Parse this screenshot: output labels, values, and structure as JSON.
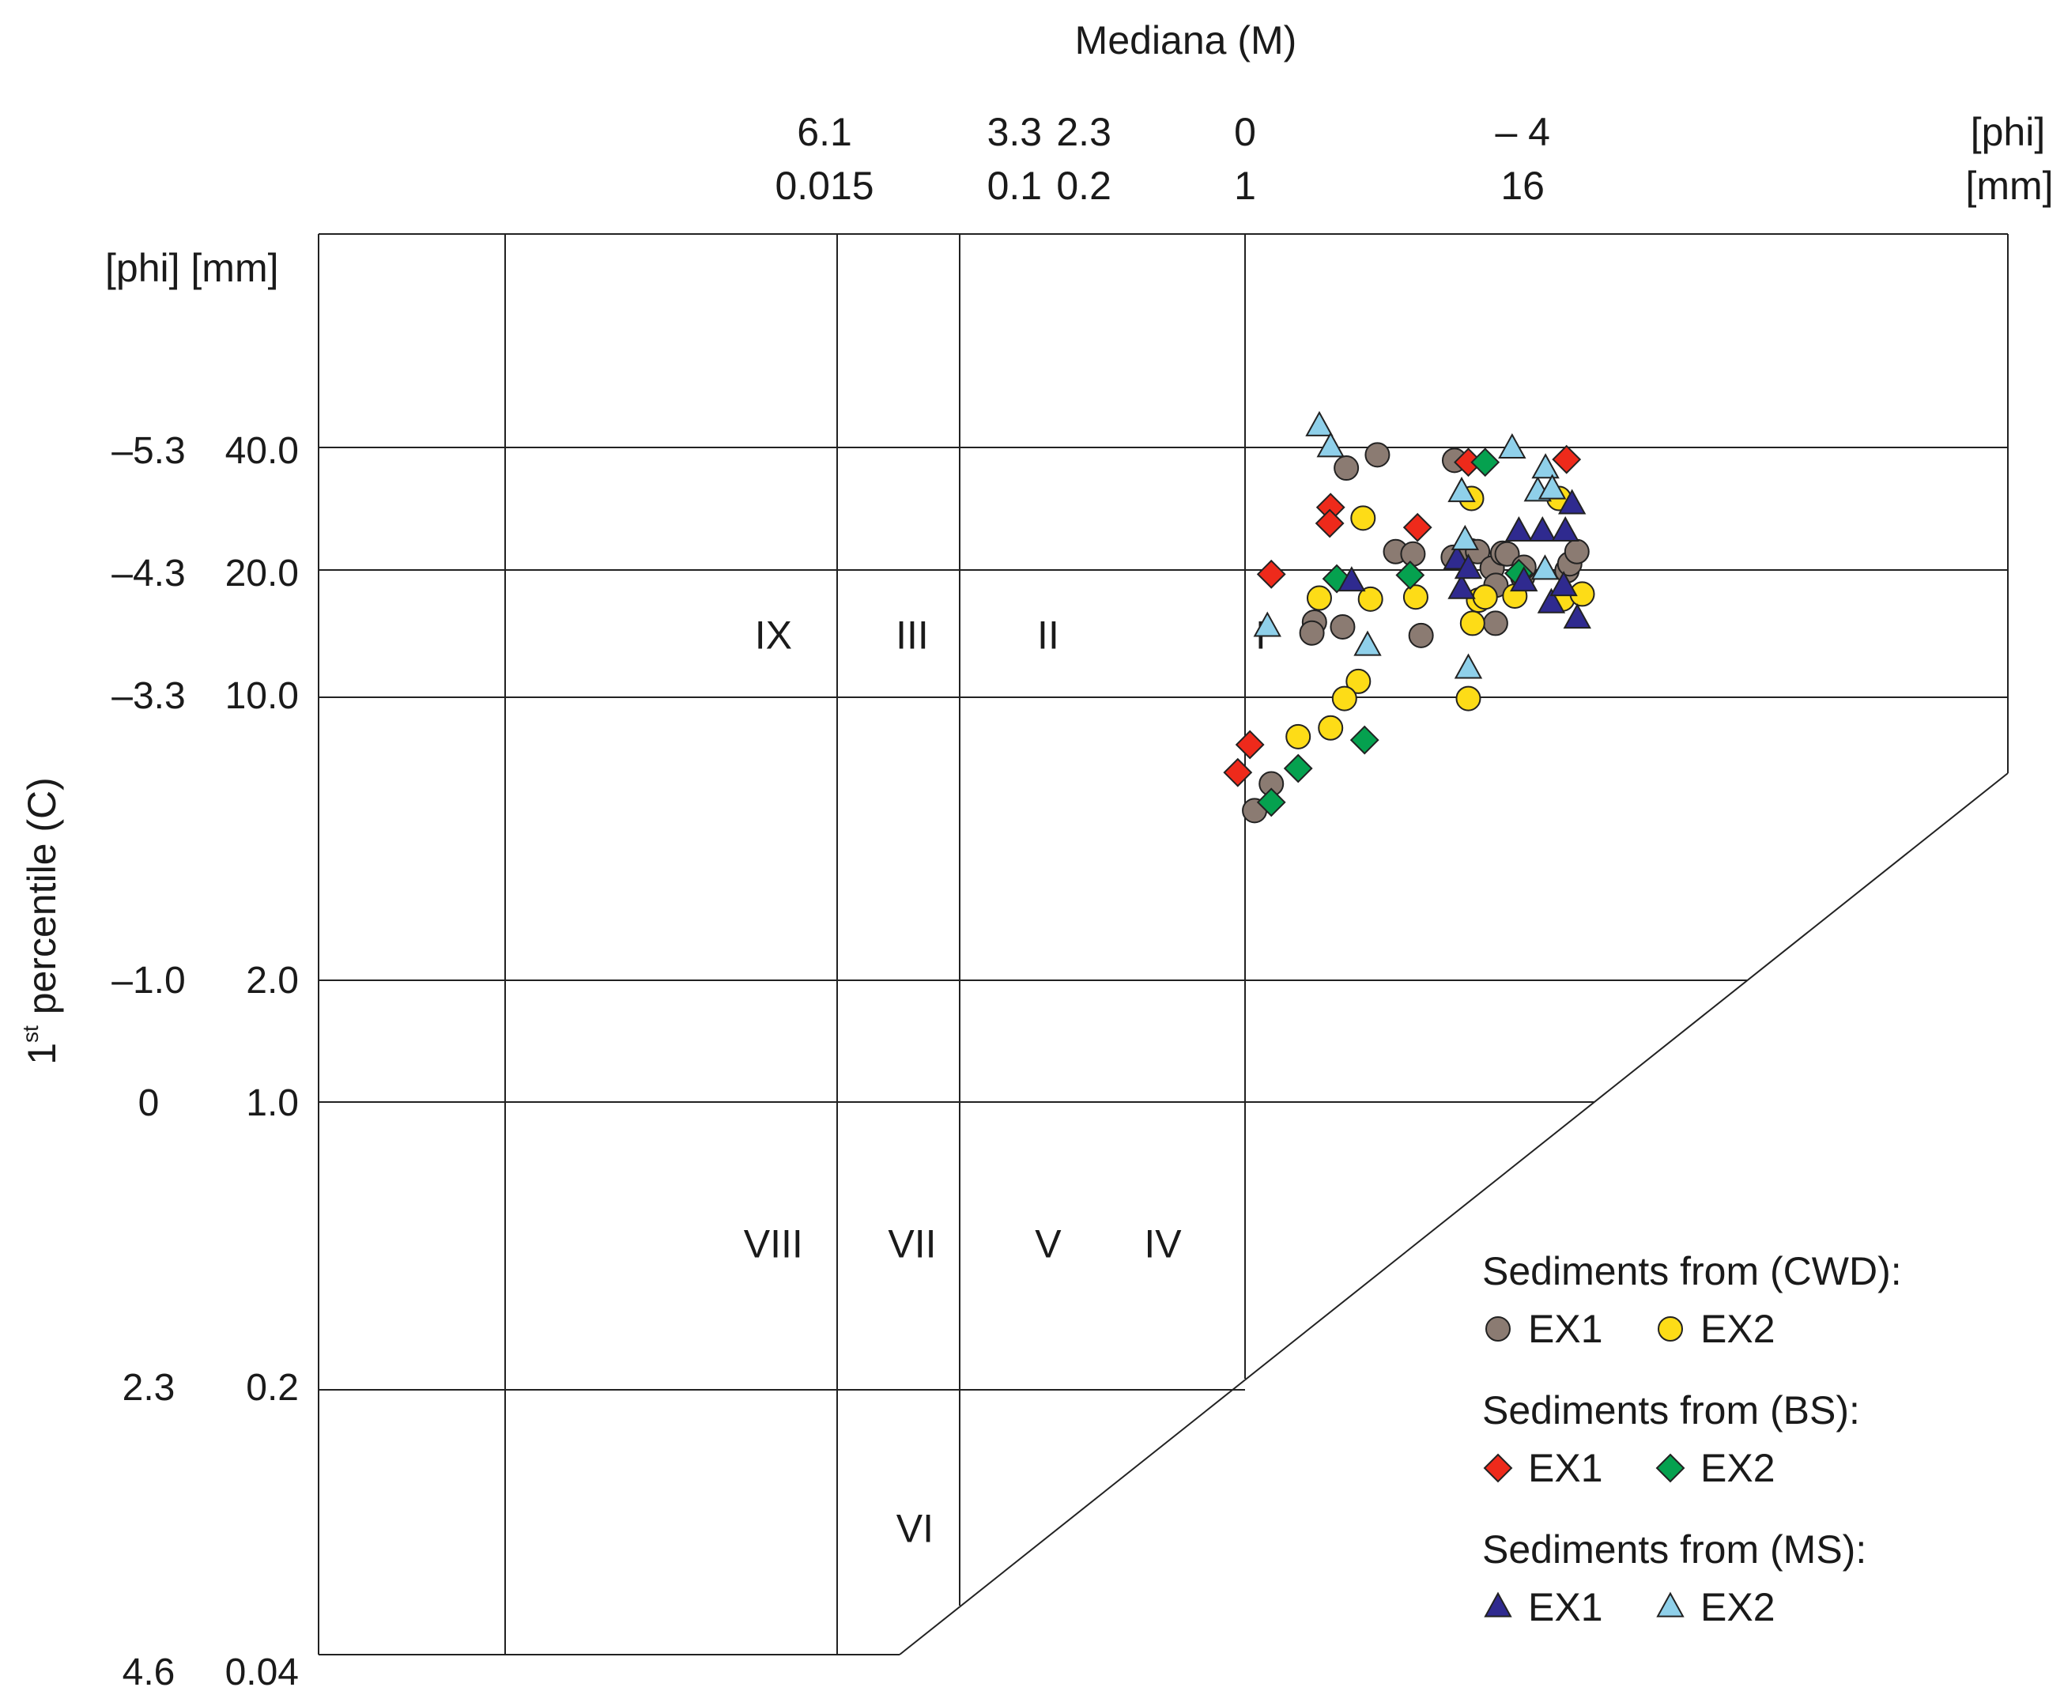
{
  "chart_data": {
    "type": "scatter",
    "title": "Mediana (M)",
    "xlabel": "Mediana (M)",
    "ylabel_main": "1",
    "ylabel_sup": "st",
    "ylabel_rest": " percentile (C)",
    "x_unit_phi": "[phi]",
    "x_unit_mm": "[mm]",
    "y_units": "[phi] [mm]",
    "x_axis_scale": "log2 of median in mm",
    "y_axis_scale": "log2 of 1st percentile in mm",
    "x_ticks": [
      {
        "phi": "6.1",
        "mm": "0.015",
        "value": 0.015
      },
      {
        "phi": "3.3",
        "mm": "0.1",
        "value": 0.1
      },
      {
        "phi": "2.3",
        "mm": "0.2",
        "value": 0.2
      },
      {
        "phi": "0",
        "mm": "1",
        "value": 1
      },
      {
        "phi": "– 4",
        "mm": "16",
        "value": 16
      }
    ],
    "y_ticks": [
      {
        "phi": "–5.3",
        "mm": "40.0",
        "value": 40
      },
      {
        "phi": "–4.3",
        "mm": "20.0",
        "value": 20
      },
      {
        "phi": "–3.3",
        "mm": "10.0",
        "value": 10
      },
      {
        "phi": "–1.0",
        "mm": "2.0",
        "value": 2
      },
      {
        "phi": "0",
        "mm": "1.0",
        "value": 1
      },
      {
        "phi": "2.3",
        "mm": "0.2",
        "value": 0.2
      },
      {
        "phi": "4.6",
        "mm": "0.04",
        "value": 0.04
      }
    ],
    "zones": [
      {
        "label": "IX",
        "m": 0.009,
        "c": 14.1
      },
      {
        "label": "III",
        "m": 0.036,
        "c": 14.1
      },
      {
        "label": "II",
        "m": 0.14,
        "c": 14.1
      },
      {
        "label": "I",
        "m": 1.17,
        "c": 14.1
      },
      {
        "label": "VIII",
        "m": 0.009,
        "c": 0.45
      },
      {
        "label": "VII",
        "m": 0.036,
        "c": 0.45
      },
      {
        "label": "V",
        "m": 0.14,
        "c": 0.45
      },
      {
        "label": "IV",
        "m": 0.44,
        "c": 0.45
      },
      {
        "label": "VI",
        "m": 0.037,
        "c": 0.09
      }
    ],
    "legend": [
      {
        "group": "Sediments from (CWD):",
        "items": [
          {
            "name": "EX1",
            "shape": "circle",
            "color": "#8b7b72"
          },
          {
            "name": "EX2",
            "shape": "circle",
            "color": "#fddc17"
          }
        ]
      },
      {
        "group": "Sediments from (BS):",
        "items": [
          {
            "name": "EX1",
            "shape": "diamond",
            "color": "#ee2a1b"
          },
          {
            "name": "EX2",
            "shape": "diamond",
            "color": "#05a14f"
          }
        ]
      },
      {
        "group": "Sediments from (MS):",
        "items": [
          {
            "name": "EX1",
            "shape": "triangle",
            "color": "#2f2a8f"
          },
          {
            "name": "EX2",
            "shape": "triangle",
            "color": "#8fd0ea"
          }
        ]
      }
    ],
    "legend_position": "bottom-right",
    "series": [
      {
        "name": "CWD EX1",
        "shape": "circle",
        "color": "#8b7b72",
        "points": [
          [
            2.75,
            36.1
          ],
          [
            3.75,
            38.9
          ],
          [
            8.1,
            37.7
          ],
          [
            4.5,
            22.5
          ],
          [
            2.0,
            15.1
          ],
          [
            1.95,
            14.2
          ],
          [
            2.65,
            14.7
          ],
          [
            5.8,
            14.0
          ],
          [
            5.35,
            22.2
          ],
          [
            8.0,
            21.8
          ],
          [
            9.55,
            22.6
          ],
          [
            10.2,
            22.5
          ],
          [
            11.8,
            20.5
          ],
          [
            12.25,
            18.6
          ],
          [
            12.2,
            15.0
          ],
          [
            13.1,
            22.3
          ],
          [
            13.7,
            22.2
          ],
          [
            16.0,
            19.5
          ],
          [
            16.2,
            20.6
          ],
          [
            24.9,
            20.2
          ],
          [
            25.6,
            21.0
          ],
          [
            27.5,
            22.5
          ],
          [
            1.3,
            6.05
          ],
          [
            1.1,
            5.2
          ]
        ]
      },
      {
        "name": "CWD EX2",
        "shape": "circle",
        "color": "#fddc17",
        "points": [
          [
            3.25,
            27.2
          ],
          [
            2.1,
            17.3
          ],
          [
            3.5,
            17.2
          ],
          [
            5.5,
            17.4
          ],
          [
            3.1,
            10.8
          ],
          [
            2.35,
            8.3
          ],
          [
            2.7,
            9.8
          ],
          [
            1.7,
            7.9
          ],
          [
            9.6,
            30.4
          ],
          [
            10.3,
            17.1
          ],
          [
            9.7,
            15.0
          ],
          [
            11.0,
            17.4
          ],
          [
            9.3,
            9.8
          ],
          [
            14.8,
            17.5
          ],
          [
            23.0,
            30.4
          ],
          [
            23.8,
            17.2
          ],
          [
            29.0,
            17.7
          ]
        ]
      },
      {
        "name": "BS EX1",
        "shape": "diamond",
        "color": "#ee2a1b",
        "points": [
          [
            0.93,
            6.45
          ],
          [
            1.05,
            7.55
          ],
          [
            1.3,
            19.8
          ],
          [
            2.35,
            28.9
          ],
          [
            2.33,
            26.4
          ],
          [
            5.6,
            25.8
          ],
          [
            9.3,
            37.3
          ],
          [
            24.8,
            37.9
          ]
        ]
      },
      {
        "name": "BS EX2",
        "shape": "diamond",
        "color": "#05a14f",
        "points": [
          [
            1.3,
            5.45
          ],
          [
            1.7,
            6.6
          ],
          [
            2.5,
            19.3
          ],
          [
            3.3,
            7.75
          ],
          [
            5.2,
            19.7
          ],
          [
            11.0,
            37.3
          ],
          [
            15.4,
            19.9
          ]
        ]
      },
      {
        "name": "MS EX1",
        "shape": "triangle",
        "color": "#2f2a8f",
        "points": [
          [
            2.9,
            19.0
          ],
          [
            8.3,
            21.5
          ],
          [
            8.7,
            18.2
          ],
          [
            9.3,
            20.4
          ],
          [
            15.4,
            25.2
          ],
          [
            16.2,
            19.0
          ],
          [
            19.5,
            25.2
          ],
          [
            21.3,
            16.8
          ],
          [
            24.5,
            25.2
          ],
          [
            26.2,
            29.4
          ],
          [
            24.1,
            18.5
          ],
          [
            27.6,
            15.4
          ]
        ]
      },
      {
        "name": "MS EX2",
        "shape": "triangle",
        "color": "#8fd0ea",
        "points": [
          [
            1.25,
            14.7
          ],
          [
            2.1,
            45.7
          ],
          [
            2.35,
            40.6
          ],
          [
            3.4,
            13.2
          ],
          [
            8.7,
            31.5
          ],
          [
            9.0,
            24.0
          ],
          [
            9.3,
            11.6
          ],
          [
            14.4,
            40.3
          ],
          [
            18.6,
            31.6
          ],
          [
            20.1,
            36.0
          ],
          [
            21.5,
            32.0
          ],
          [
            20.0,
            20.3
          ]
        ]
      }
    ]
  }
}
